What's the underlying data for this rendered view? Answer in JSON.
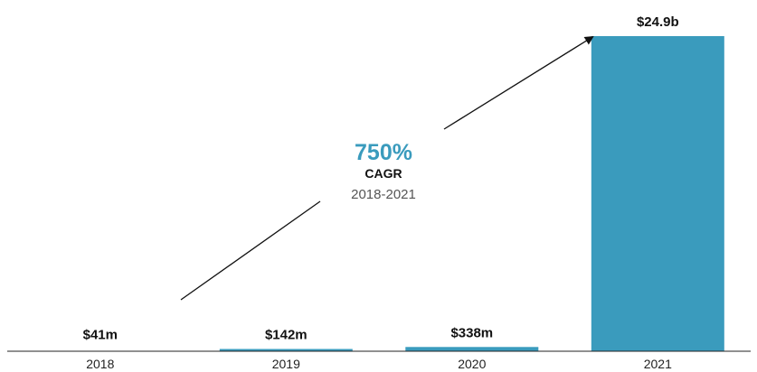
{
  "chart_data": {
    "type": "bar",
    "categories": [
      "2018",
      "2019",
      "2020",
      "2021"
    ],
    "values": [
      0.041,
      0.142,
      0.338,
      24.9
    ],
    "value_labels": [
      "$41m",
      "$142m",
      "$338m",
      "$24.9b"
    ],
    "unit": "$b",
    "ylim": [
      0,
      24.9
    ],
    "grid": false,
    "legend": "none",
    "title": "",
    "xlabel": "",
    "ylabel": "",
    "annotation": {
      "value": "750%",
      "label": "CAGR",
      "period": "2018-2021"
    }
  },
  "colors": {
    "bar": "#3a9bbd",
    "accent": "#3a9bbd",
    "axis": "#222222",
    "arrow": "#111111"
  }
}
